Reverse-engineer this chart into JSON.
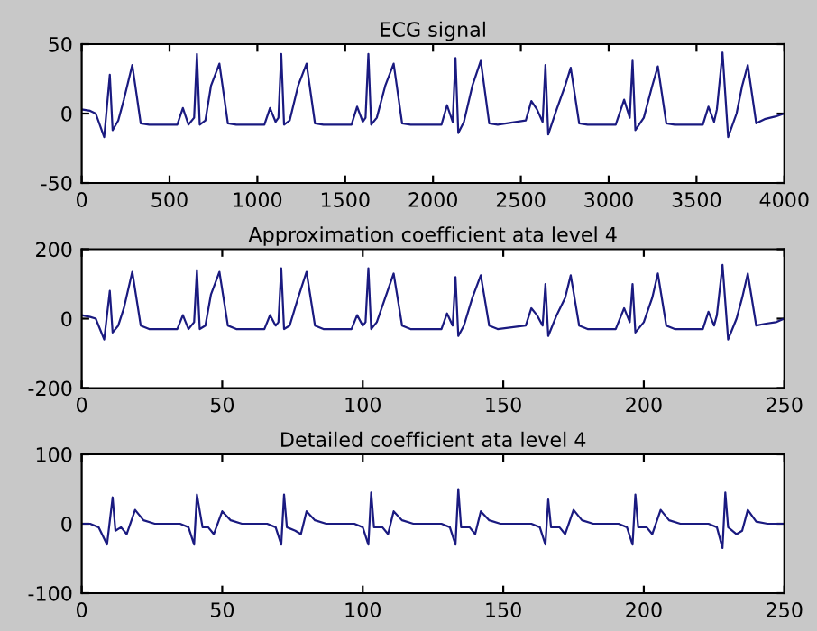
{
  "chart_data": [
    {
      "type": "line",
      "title": "ECG signal",
      "xlim": [
        0,
        4000
      ],
      "xticks": [
        0,
        500,
        1000,
        1500,
        2000,
        2500,
        3000,
        3500,
        4000
      ],
      "ylim": [
        -50,
        50
      ],
      "yticks": [
        -50,
        0,
        50
      ],
      "series": [
        {
          "color": "#1a1a80",
          "x": [
            0,
            48,
            80,
            128,
            160,
            176,
            208,
            240,
            288,
            336,
            384,
            544,
            576,
            608,
            640,
            656,
            672,
            704,
            736,
            784,
            832,
            880,
            1040,
            1072,
            1104,
            1120,
            1136,
            1152,
            1184,
            1232,
            1280,
            1328,
            1376,
            1536,
            1568,
            1600,
            1616,
            1632,
            1648,
            1680,
            1728,
            1776,
            1824,
            1872,
            2048,
            2080,
            2112,
            2128,
            2144,
            2176,
            2224,
            2272,
            2320,
            2368,
            2528,
            2560,
            2592,
            2624,
            2640,
            2656,
            2704,
            2752,
            2784,
            2832,
            2880,
            3040,
            3088,
            3120,
            3136,
            3152,
            3200,
            3248,
            3280,
            3328,
            3376,
            3536,
            3568,
            3600,
            3616,
            3648,
            3680,
            3728,
            3760,
            3792,
            3840,
            3888,
            3952,
            4000
          ],
          "values": [
            3,
            2,
            0,
            -17,
            28,
            -12,
            -5,
            10,
            35,
            -7,
            -8,
            -8,
            4,
            -8,
            -3,
            43,
            -8,
            -5,
            20,
            36,
            -7,
            -8,
            -8,
            4,
            -6,
            -3,
            43,
            -8,
            -5,
            20,
            36,
            -7,
            -8,
            -8,
            5,
            -6,
            -3,
            43,
            -8,
            -3,
            20,
            36,
            -7,
            -8,
            -8,
            6,
            -6,
            40,
            -14,
            -6,
            20,
            38,
            -7,
            -8,
            -5,
            9,
            3,
            -6,
            35,
            -15,
            3,
            20,
            33,
            -7,
            -8,
            -8,
            10,
            -3,
            38,
            -12,
            -3,
            20,
            34,
            -7,
            -8,
            -8,
            5,
            -6,
            3,
            44,
            -17,
            0,
            20,
            35,
            -7,
            -4,
            -2,
            0
          ]
        }
      ]
    },
    {
      "type": "line",
      "title": "Approximation coefficient ata level 4",
      "xlim": [
        0,
        250
      ],
      "xticks": [
        0,
        50,
        100,
        150,
        200,
        250
      ],
      "ylim": [
        -200,
        200
      ],
      "yticks": [
        -200,
        0,
        200
      ],
      "series": [
        {
          "color": "#1a1a80",
          "x": [
            0,
            3,
            5,
            8,
            10,
            11,
            13,
            15,
            18,
            21,
            24,
            34,
            36,
            38,
            40,
            41,
            42,
            44,
            46,
            49,
            52,
            55,
            65,
            67,
            69,
            70,
            71,
            72,
            74,
            77,
            80,
            83,
            86,
            96,
            98,
            100,
            101,
            102,
            103,
            105,
            108,
            111,
            114,
            117,
            128,
            130,
            132,
            133,
            134,
            136,
            139,
            142,
            145,
            148,
            158,
            160,
            162,
            164,
            165,
            166,
            169,
            172,
            174,
            177,
            180,
            190,
            193,
            195,
            196,
            197,
            200,
            203,
            205,
            208,
            211,
            221,
            223,
            225,
            226,
            228,
            230,
            233,
            235,
            237,
            240,
            243,
            247,
            250
          ],
          "values": [
            10,
            5,
            0,
            -60,
            80,
            -40,
            -20,
            30,
            135,
            -20,
            -30,
            -30,
            10,
            -30,
            -10,
            140,
            -30,
            -20,
            70,
            135,
            -20,
            -30,
            -30,
            10,
            -20,
            -10,
            145,
            -30,
            -20,
            60,
            135,
            -20,
            -30,
            -30,
            10,
            -20,
            -10,
            145,
            -30,
            -10,
            60,
            130,
            -20,
            -30,
            -30,
            15,
            -20,
            120,
            -50,
            -20,
            60,
            125,
            -20,
            -30,
            -20,
            30,
            10,
            -20,
            100,
            -50,
            10,
            60,
            125,
            -20,
            -30,
            -30,
            30,
            -10,
            100,
            -40,
            -10,
            60,
            130,
            -20,
            -30,
            -30,
            20,
            -20,
            10,
            155,
            -60,
            0,
            60,
            130,
            -20,
            -15,
            -10,
            0
          ]
        }
      ]
    },
    {
      "type": "line",
      "title": "Detailed coefficient ata level 4",
      "xlim": [
        0,
        250
      ],
      "xticks": [
        0,
        50,
        100,
        150,
        200,
        250
      ],
      "ylim": [
        -100,
        100
      ],
      "yticks": [
        -100,
        0,
        100
      ],
      "series": [
        {
          "color": "#1a1a80",
          "x": [
            0,
            3,
            6,
            9,
            11,
            12,
            14,
            16,
            19,
            22,
            26,
            35,
            38,
            40,
            41,
            43,
            45,
            47,
            50,
            53,
            57,
            66,
            69,
            71,
            72,
            73,
            76,
            78,
            80,
            83,
            87,
            97,
            100,
            102,
            103,
            104,
            107,
            109,
            111,
            114,
            118,
            128,
            131,
            133,
            134,
            135,
            138,
            140,
            142,
            145,
            149,
            160,
            163,
            165,
            166,
            167,
            170,
            172,
            175,
            178,
            182,
            191,
            194,
            196,
            197,
            198,
            201,
            203,
            206,
            209,
            213,
            223,
            226,
            228,
            229,
            230,
            233,
            235,
            237,
            240,
            244,
            250
          ],
          "values": [
            0,
            0,
            -5,
            -30,
            38,
            -10,
            -5,
            -15,
            20,
            5,
            0,
            0,
            -5,
            -30,
            42,
            -5,
            -5,
            -15,
            18,
            5,
            0,
            0,
            -5,
            -30,
            42,
            -5,
            -10,
            -15,
            18,
            5,
            0,
            0,
            -5,
            -30,
            45,
            -5,
            -5,
            -15,
            18,
            5,
            0,
            0,
            -5,
            -30,
            50,
            -5,
            -5,
            -15,
            18,
            5,
            0,
            0,
            -5,
            -30,
            35,
            -5,
            -5,
            -15,
            20,
            5,
            0,
            0,
            -5,
            -30,
            42,
            -5,
            -5,
            -15,
            20,
            5,
            0,
            0,
            -5,
            -35,
            45,
            -5,
            -15,
            -10,
            20,
            3,
            0,
            0
          ]
        }
      ]
    }
  ]
}
